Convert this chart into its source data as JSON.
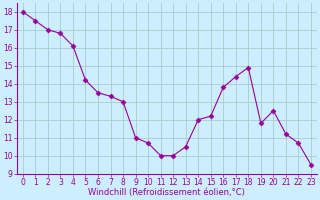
{
  "x": [
    0,
    1,
    2,
    3,
    4,
    5,
    6,
    7,
    8,
    9,
    10,
    11,
    12,
    13,
    14,
    15,
    16,
    17,
    18,
    19,
    20,
    21,
    22,
    23
  ],
  "y": [
    18.0,
    17.5,
    17.0,
    16.8,
    16.1,
    14.2,
    13.5,
    13.3,
    13.0,
    11.0,
    10.7,
    10.0,
    10.0,
    10.5,
    12.0,
    12.2,
    13.8,
    14.4,
    14.9,
    11.8,
    12.5,
    11.2,
    10.7,
    9.5
  ],
  "line_color": "#990099",
  "marker": "D",
  "marker_size": 2.5,
  "bg_color": "#cceeff",
  "grid_color": "#aacccc",
  "xlabel": "Windchill (Refroidissement éolien,°C)",
  "xlabel_color": "#990099",
  "tick_color": "#990099",
  "ylim": [
    9,
    18.5
  ],
  "xlim": [
    -0.5,
    23.5
  ],
  "yticks": [
    9,
    10,
    11,
    12,
    13,
    14,
    15,
    16,
    17,
    18
  ],
  "xticks": [
    0,
    1,
    2,
    3,
    4,
    5,
    6,
    7,
    8,
    9,
    10,
    11,
    12,
    13,
    14,
    15,
    16,
    17,
    18,
    19,
    20,
    21,
    22,
    23
  ],
  "spine_color": "#990099",
  "font_size": 5.5,
  "xlabel_font_size": 6.0,
  "line_width": 0.8
}
